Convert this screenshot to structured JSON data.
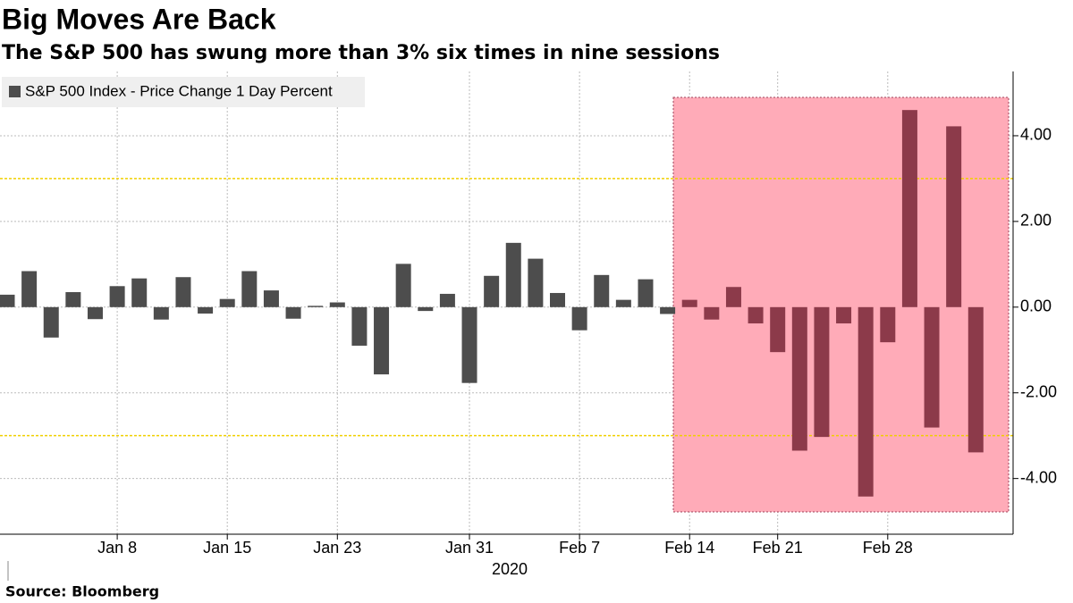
{
  "chart_data": {
    "type": "bar",
    "title": "Big Moves Are Back",
    "subtitle": "The S&P 500 has swung more than 3% six times in nine sessions",
    "source": "Source: Bloomberg",
    "x_label": "2020",
    "categories": [
      null,
      null,
      null,
      null,
      null,
      "Jan 8",
      null,
      null,
      null,
      null,
      "Jan 15",
      null,
      null,
      null,
      null,
      "Jan 23",
      null,
      null,
      null,
      null,
      null,
      "Jan 31",
      null,
      null,
      null,
      null,
      "Feb 7",
      null,
      null,
      null,
      null,
      "Feb 14",
      null,
      null,
      null,
      "Feb 21",
      null,
      null,
      null,
      null,
      "Feb 28",
      null,
      null,
      null,
      null
    ],
    "series": [
      {
        "name": "S&P 500 Index - Price Change 1 Day Percent",
        "color": "#4d4d4d",
        "values": [
          0.29,
          0.84,
          -0.71,
          0.35,
          -0.28,
          0.49,
          0.67,
          -0.29,
          0.7,
          -0.15,
          0.19,
          0.84,
          0.39,
          -0.27,
          0.03,
          0.11,
          -0.9,
          -1.57,
          1.01,
          -0.09,
          0.31,
          -1.77,
          0.73,
          1.5,
          1.13,
          0.33,
          -0.54,
          0.75,
          0.17,
          0.65,
          -0.16,
          0.17,
          -0.29,
          0.47,
          -0.38,
          -1.05,
          -3.35,
          -3.03,
          -0.38,
          -4.42,
          -0.82,
          4.6,
          -2.81,
          4.22,
          -3.39
        ]
      }
    ],
    "highlight_color": "#8c3a4a",
    "reference_lines": [
      3,
      -3
    ],
    "ylim": [
      -5.3,
      5.5
    ],
    "yticks": [
      {
        "value": 4,
        "label": "4.00"
      },
      {
        "value": 2,
        "label": "2.00"
      },
      {
        "value": 0,
        "label": "0.00"
      },
      {
        "value": -2,
        "label": "-2.00"
      },
      {
        "value": -4,
        "label": "-4.00"
      }
    ],
    "grid": true
  }
}
